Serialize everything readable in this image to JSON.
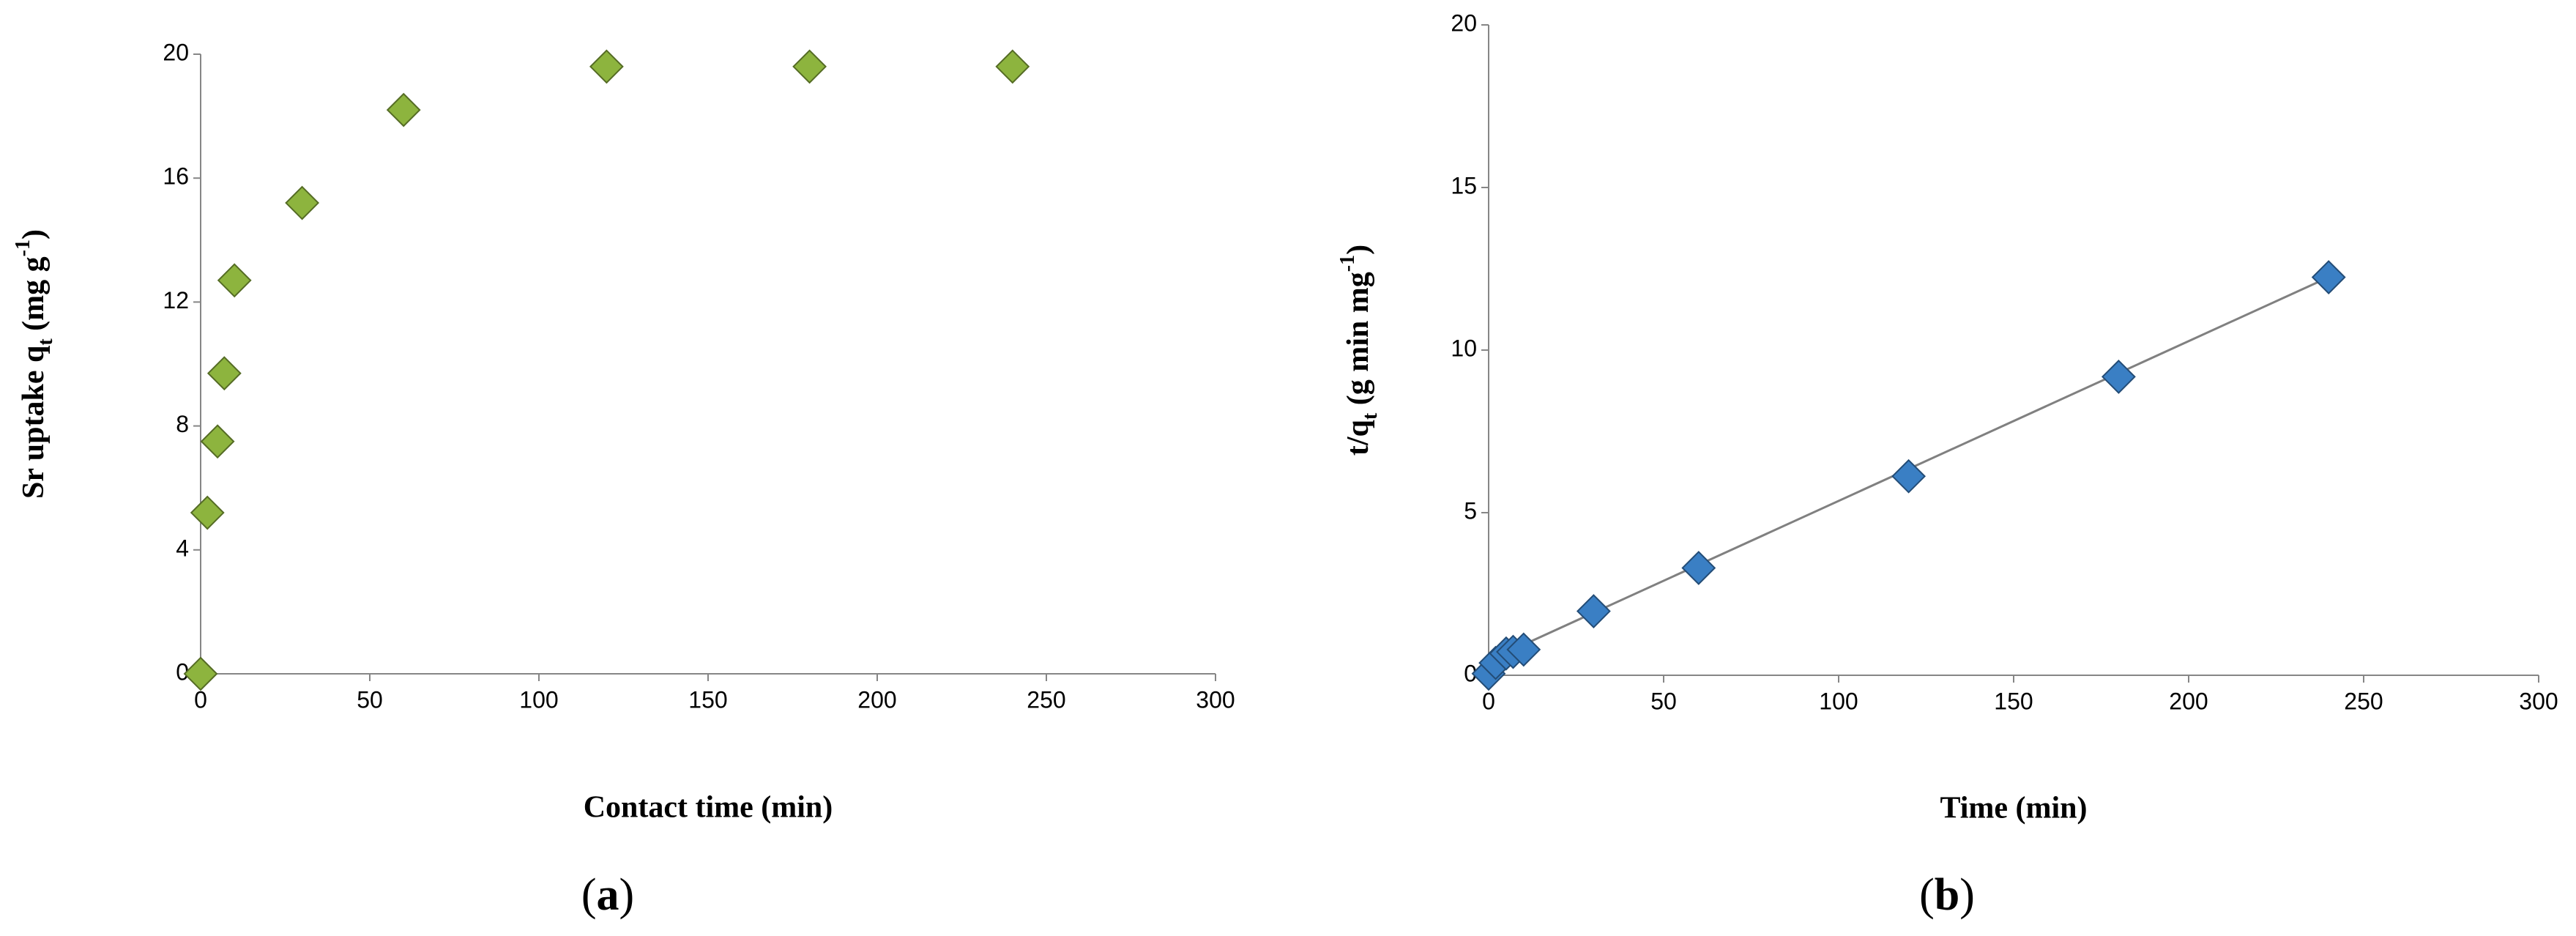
{
  "chart_data": [
    {
      "type": "scatter",
      "xlabel": "Contact time (min)",
      "ylabel_parts": [
        "Sr uptake q",
        "t",
        " (mg g",
        "-1",
        ")"
      ],
      "caption_parts": [
        "(",
        "a",
        ")"
      ],
      "x": [
        0,
        2,
        5,
        7,
        10,
        30,
        60,
        120,
        180,
        240
      ],
      "values": [
        0,
        5.2,
        7.5,
        9.7,
        12.7,
        15.2,
        18.2,
        19.6,
        19.6,
        19.6
      ],
      "color": "#8db43e",
      "xlim": [
        0,
        300
      ],
      "xticks": [
        0,
        50,
        100,
        150,
        200,
        250,
        300
      ],
      "ylim": [
        0,
        20
      ],
      "yticks": [
        0,
        4,
        8,
        12,
        16,
        20
      ]
    },
    {
      "type": "scatter",
      "xlabel": "Time (min)",
      "ylabel_parts": [
        "t/q",
        "t",
        " (g min mg",
        "-1",
        ")"
      ],
      "caption_parts": [
        "(",
        "b",
        ")"
      ],
      "x": [
        0,
        2,
        5,
        7,
        10,
        30,
        60,
        120,
        180,
        240
      ],
      "values": [
        0.05,
        0.38,
        0.67,
        0.72,
        0.79,
        1.97,
        3.3,
        6.12,
        9.18,
        12.24
      ],
      "color": "#3a7fc4",
      "trendline": {
        "x": [
          0,
          240
        ],
        "values": [
          0.45,
          12.24
        ],
        "color": "#808080"
      },
      "xlim": [
        0,
        300
      ],
      "xticks": [
        0,
        50,
        100,
        150,
        200,
        250,
        300
      ],
      "ylim": [
        0,
        20
      ],
      "yticks": [
        0,
        5,
        10,
        15,
        20
      ]
    }
  ]
}
